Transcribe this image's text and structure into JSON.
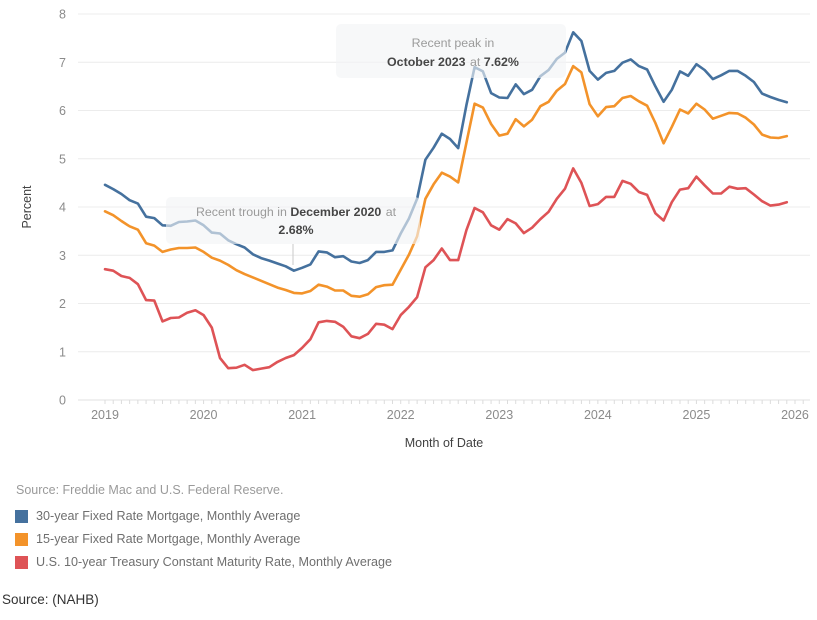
{
  "chart_data": {
    "type": "line",
    "xlabel": "Month of Date",
    "ylabel": "Percent",
    "ylim": [
      0,
      8
    ],
    "y_ticks": [
      0,
      1,
      2,
      3,
      4,
      5,
      6,
      7,
      8
    ],
    "x_tick_years": [
      "2019",
      "2020",
      "2021",
      "2022",
      "2023",
      "2024",
      "2025",
      "2026"
    ],
    "x_start": "2019-01",
    "x_end": "2025-12",
    "grid": "horizontal",
    "legend_position": "bottom-left",
    "series": [
      {
        "name": "30-year Fixed Rate Mortgage, Monthly Average",
        "color": "#45719E",
        "values": [
          4.46,
          4.37,
          4.27,
          4.14,
          4.07,
          3.8,
          3.77,
          3.62,
          3.61,
          3.69,
          3.7,
          3.72,
          3.62,
          3.47,
          3.45,
          3.31,
          3.23,
          3.16,
          3.02,
          2.94,
          2.89,
          2.83,
          2.77,
          2.68,
          2.74,
          2.81,
          3.08,
          3.06,
          2.96,
          2.98,
          2.87,
          2.84,
          2.9,
          3.07,
          3.07,
          3.1,
          3.45,
          3.76,
          4.17,
          4.98,
          5.23,
          5.52,
          5.41,
          5.22,
          6.11,
          6.9,
          6.81,
          6.36,
          6.27,
          6.26,
          6.54,
          6.34,
          6.43,
          6.71,
          6.84,
          7.07,
          7.2,
          7.62,
          7.44,
          6.82,
          6.64,
          6.78,
          6.82,
          6.99,
          7.06,
          6.92,
          6.85,
          6.5,
          6.18,
          6.43,
          6.81,
          6.72,
          6.96,
          6.84,
          6.65,
          6.73,
          6.82,
          6.82,
          6.72,
          6.59,
          6.35,
          6.28,
          6.22,
          6.17
        ]
      },
      {
        "name": "15-year Fixed Rate Mortgage, Monthly Average",
        "color": "#F3932A",
        "values": [
          3.91,
          3.83,
          3.71,
          3.6,
          3.53,
          3.25,
          3.2,
          3.07,
          3.12,
          3.15,
          3.15,
          3.16,
          3.07,
          2.95,
          2.89,
          2.8,
          2.69,
          2.61,
          2.54,
          2.47,
          2.4,
          2.33,
          2.28,
          2.22,
          2.21,
          2.26,
          2.39,
          2.35,
          2.27,
          2.27,
          2.16,
          2.14,
          2.19,
          2.34,
          2.38,
          2.39,
          2.7,
          3.01,
          3.39,
          4.17,
          4.47,
          4.71,
          4.63,
          4.51,
          5.33,
          6.14,
          6.06,
          5.72,
          5.48,
          5.52,
          5.82,
          5.67,
          5.81,
          6.09,
          6.18,
          6.41,
          6.55,
          6.92,
          6.79,
          6.13,
          5.88,
          6.07,
          6.09,
          6.26,
          6.3,
          6.19,
          6.1,
          5.74,
          5.32,
          5.66,
          6.02,
          5.94,
          6.14,
          6.02,
          5.83,
          5.89,
          5.95,
          5.94,
          5.85,
          5.71,
          5.5,
          5.44,
          5.43,
          5.47
        ]
      },
      {
        "name": " U.S. 10-year Treasury Constant Maturity Rate, Monthly Average",
        "color": "#DE5356",
        "values": [
          2.71,
          2.68,
          2.57,
          2.53,
          2.4,
          2.07,
          2.06,
          1.63,
          1.7,
          1.71,
          1.81,
          1.86,
          1.76,
          1.5,
          0.87,
          0.66,
          0.67,
          0.73,
          0.62,
          0.65,
          0.68,
          0.79,
          0.87,
          0.93,
          1.08,
          1.26,
          1.61,
          1.64,
          1.62,
          1.52,
          1.32,
          1.28,
          1.37,
          1.58,
          1.56,
          1.47,
          1.76,
          1.93,
          2.13,
          2.75,
          2.9,
          3.14,
          2.9,
          2.9,
          3.52,
          3.98,
          3.89,
          3.62,
          3.53,
          3.75,
          3.66,
          3.46,
          3.57,
          3.75,
          3.9,
          4.17,
          4.38,
          4.8,
          4.5,
          4.02,
          4.06,
          4.21,
          4.21,
          4.54,
          4.48,
          4.31,
          4.25,
          3.87,
          3.72,
          4.1,
          4.36,
          4.39,
          4.63,
          4.45,
          4.28,
          4.28,
          4.42,
          4.38,
          4.39,
          4.26,
          4.12,
          4.03,
          4.05,
          4.1
        ]
      }
    ],
    "annotations": [
      {
        "id": "recent-peak",
        "line1": {
          "gray": "Recent peak in"
        },
        "line2": {
          "bold1": "October 2023",
          "gray": " at ",
          "bold2": "7.62%"
        },
        "anchor_month_index": 57,
        "anchor_value": 7.62
      },
      {
        "id": "recent-trough",
        "line1": {
          "gray1": "Recent trough in ",
          "bold1": "December 2020",
          "gray2": " at"
        },
        "line2": {
          "bold2": "2.68%"
        },
        "anchor_month_index": 23,
        "anchor_value": 2.68
      }
    ]
  },
  "sources": {
    "chart_source": "Source: Freddie Mac and U.S. Federal Reserve.",
    "page_source": "Source: (NAHB)"
  }
}
